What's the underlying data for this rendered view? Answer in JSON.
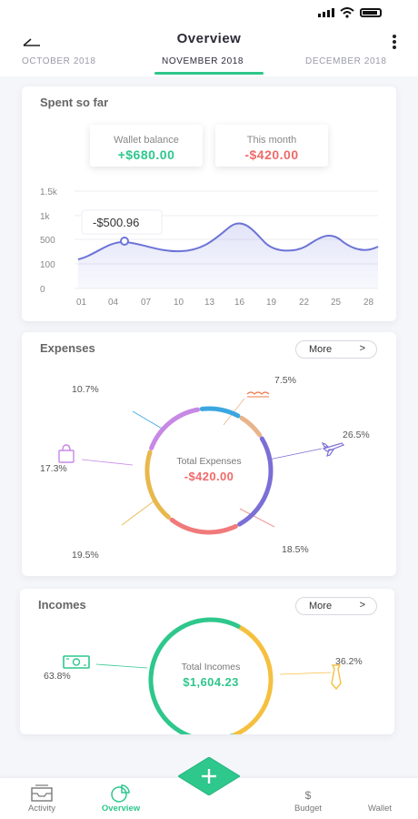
{
  "header": {
    "title": "Overview",
    "tabs": [
      "OCTOBER 2018",
      "NOVEMBER 2018",
      "DECEMBER 2018"
    ],
    "active_tab": 1
  },
  "spent": {
    "title": "Spent so far",
    "wallet_label": "Wallet balance",
    "wallet_value": "+$680.00",
    "month_label": "This month",
    "month_value": "-$420.00",
    "tooltip": "-$500.96",
    "chart_data": {
      "type": "area",
      "y_ticks": [
        "1.5k",
        "1k",
        "500",
        "100",
        "0"
      ],
      "x_ticks": [
        "01",
        "04",
        "07",
        "10",
        "13",
        "16",
        "19",
        "22",
        "25",
        "28"
      ],
      "series_color": "#6c74d6"
    }
  },
  "expenses": {
    "title": "Expenses",
    "more": "More",
    "center_label": "Total Expenses",
    "center_value": "-$420.00",
    "chart_data": {
      "type": "pie",
      "slices": [
        {
          "value": 7.5,
          "label": "7.5%",
          "color": "#e8b48a"
        },
        {
          "value": 26.5,
          "label": "26.5%",
          "color": "#7b6fd6"
        },
        {
          "value": 18.5,
          "label": "18.5%",
          "color": "#f07a7a"
        },
        {
          "value": 19.5,
          "label": "19.5%",
          "color": "#e8b84d"
        },
        {
          "value": 17.3,
          "label": "17.3%",
          "color": "#c788e6"
        },
        {
          "value": 10.7,
          "label": "10.7%",
          "color": "#3aa7e0"
        }
      ]
    }
  },
  "incomes": {
    "title": "Incomes",
    "more": "More",
    "center_label": "Total Incomes",
    "center_value": "$1,604.23",
    "chart_data": {
      "type": "pie",
      "slices": [
        {
          "value": 36.2,
          "label": "36.2%",
          "color": "#f5c040"
        },
        {
          "value": 63.8,
          "label": "63.8%",
          "color": "#2ec78c"
        }
      ]
    }
  },
  "nav": {
    "items": [
      "Activity",
      "Overview",
      "Budget",
      "Wallet"
    ],
    "budget_symbol": "$"
  },
  "colors": {
    "green": "#2ec78c",
    "red": "#f06a6a",
    "accent": "#6c74d6"
  }
}
